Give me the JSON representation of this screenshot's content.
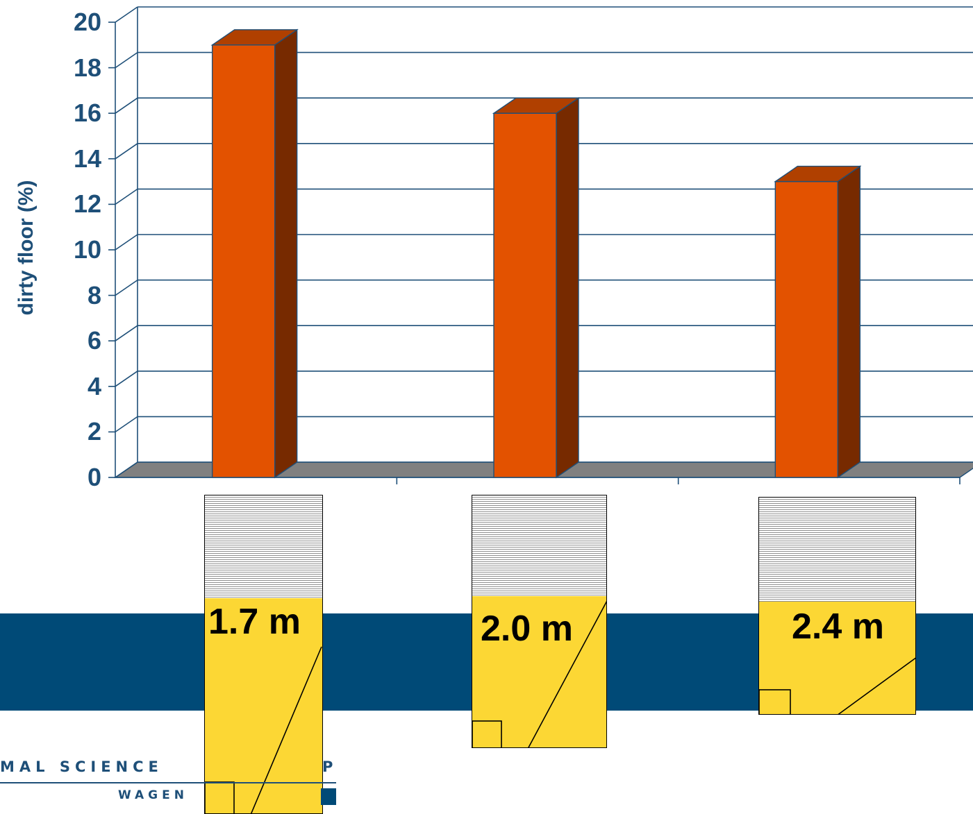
{
  "colors": {
    "axis": "#1e4f78",
    "text": "#1e4f78",
    "bar_front": "#e35200",
    "bar_top": "#b04000",
    "bar_side": "#772a00",
    "floor": "#808080",
    "band": "#004a77",
    "pen_floor": "#fcd734",
    "logo": "#1e4f78"
  },
  "chart_data": {
    "type": "bar",
    "style": "3d",
    "ylabel": "dirty floor (%)",
    "xlabel": "",
    "ylim": [
      0,
      20
    ],
    "yticks": [
      0,
      2,
      4,
      6,
      8,
      10,
      12,
      14,
      16,
      18,
      20
    ],
    "grid": true,
    "categories": [
      "1.7 m",
      "2.0 m",
      "2.4 m"
    ],
    "values": [
      19.0,
      16.0,
      13.0
    ]
  },
  "pens": [
    {
      "label": "1.7 m"
    },
    {
      "label": "2.0 m"
    },
    {
      "label": "2.4 m"
    }
  ],
  "logo": {
    "line1": "MAL SCIENCE",
    "line1_end": "P",
    "line2": "WAGEN"
  }
}
